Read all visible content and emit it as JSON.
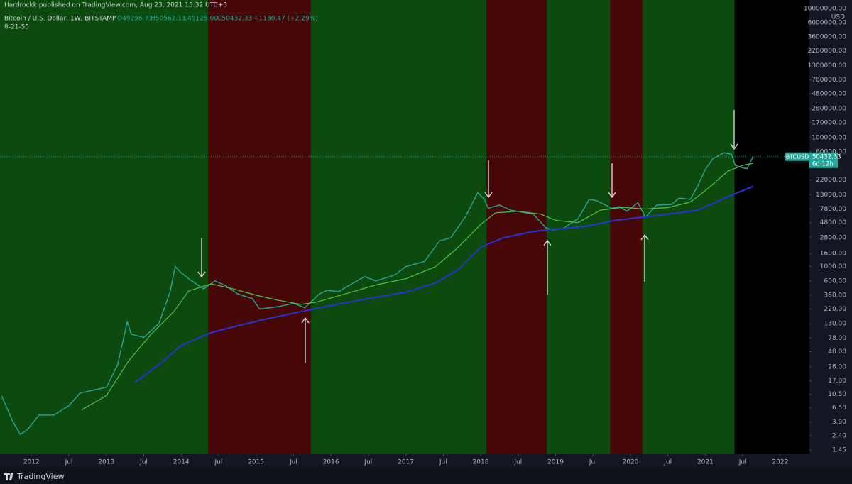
{
  "header": {
    "publisher": "Hardrockk published on TradingView.com, Aug 23, 2021 15:32 UTC+3",
    "symbol": "Bitcoin / U.S. Dollar, 1W, BITSTAMP",
    "open": "O49296.71",
    "high": "H50562.11",
    "low": "L49125.00",
    "close": "C50432.33",
    "change": "+1130.47 (+2.29%)",
    "indicator": "8-21-55"
  },
  "footer": {
    "brand": "TradingView"
  },
  "chart_data": {
    "type": "line",
    "log_scale": true,
    "grid": false,
    "y_unit": "USD",
    "xlim": [
      2011.58,
      2022.39
    ],
    "ylim": [
      1.24,
      13500000
    ],
    "xticks": [
      2012,
      {
        "value": 2012.5,
        "label": "Jul"
      },
      2013,
      {
        "value": 2013.5,
        "label": "Jul"
      },
      2014,
      {
        "value": 2014.5,
        "label": "Jul"
      },
      2015,
      {
        "value": 2015.5,
        "label": "Jul"
      },
      2016,
      {
        "value": 2016.5,
        "label": "Jul"
      },
      2017,
      {
        "value": 2017.5,
        "label": "Jul"
      },
      2018,
      {
        "value": 2018.5,
        "label": "Jul"
      },
      2019,
      {
        "value": 2019.5,
        "label": "Jul"
      },
      2020,
      {
        "value": 2020.5,
        "label": "Jul"
      },
      2021,
      {
        "value": 2021.5,
        "label": "Jul"
      },
      2022
    ],
    "yticks": [
      {
        "value": 10000000,
        "label": "10000000.00"
      },
      {
        "value": 6000000,
        "label": "6000000.00"
      },
      {
        "value": 3600000,
        "label": "3600000.00"
      },
      {
        "value": 2200000,
        "label": "2200000.00"
      },
      {
        "value": 1300000,
        "label": "1300000.00"
      },
      {
        "value": 780000,
        "label": "780000.00"
      },
      {
        "value": 480000,
        "label": "480000.00"
      },
      {
        "value": 280000,
        "label": "280000.00"
      },
      {
        "value": 170000,
        "label": "170000.00"
      },
      {
        "value": 100000,
        "label": "100000.00"
      },
      {
        "value": 60000,
        "label": "60000.00"
      },
      {
        "value": 22000,
        "label": "22000.00"
      },
      {
        "value": 13000,
        "label": "13000.00"
      },
      {
        "value": 7800,
        "label": "7800.00"
      },
      {
        "value": 4800,
        "label": "4800.00"
      },
      {
        "value": 2800,
        "label": "2800.00"
      },
      {
        "value": 1600,
        "label": "1600.00"
      },
      {
        "value": 1000,
        "label": "1000.00"
      },
      {
        "value": 600,
        "label": "600.00"
      },
      {
        "value": 360,
        "label": "360.00"
      },
      {
        "value": 220,
        "label": "220.00"
      },
      {
        "value": 130,
        "label": "130.00"
      },
      {
        "value": 78,
        "label": "78.00"
      },
      {
        "value": 48,
        "label": "48.00"
      },
      {
        "value": 28,
        "label": "28.00"
      },
      {
        "value": 17,
        "label": "17.00"
      },
      {
        "value": 10.5,
        "label": "10.50"
      },
      {
        "value": 6.5,
        "label": "6.50"
      },
      {
        "value": 3.9,
        "label": "3.90"
      },
      {
        "value": 2.4,
        "label": "2.40"
      },
      {
        "value": 1.45,
        "label": "1.45"
      }
    ],
    "bands": [
      {
        "from": 2011.58,
        "to": 2014.36,
        "color": "#0c4a0e"
      },
      {
        "from": 2014.36,
        "to": 2015.73,
        "color": "#470707"
      },
      {
        "from": 2015.73,
        "to": 2018.08,
        "color": "#0c4a0e"
      },
      {
        "from": 2018.08,
        "to": 2018.88,
        "color": "#470707"
      },
      {
        "from": 2018.88,
        "to": 2019.73,
        "color": "#0c4a0e"
      },
      {
        "from": 2019.73,
        "to": 2020.16,
        "color": "#470707"
      },
      {
        "from": 2020.16,
        "to": 2021.39,
        "color": "#0c4a0e"
      },
      {
        "from": 2021.39,
        "to": 2022.39,
        "color": "#000000"
      }
    ],
    "price_tag": {
      "symbol": "BTCUSD",
      "countdown": "6d 12h",
      "color": "#26a69a"
    },
    "series": [
      {
        "color": "#26a69a",
        "width": 1.4,
        "x": [
          2011.6,
          2011.75,
          2011.85,
          2011.95,
          2012.1,
          2012.3,
          2012.5,
          2012.65,
          2012.8,
          2013.0,
          2013.15,
          2013.28,
          2013.33,
          2013.5,
          2013.7,
          2013.85,
          2013.92,
          2014.0,
          2014.1,
          2014.3,
          2014.45,
          2014.6,
          2014.75,
          2014.95,
          2015.05,
          2015.3,
          2015.5,
          2015.65,
          2015.85,
          2015.95,
          2016.1,
          2016.45,
          2016.6,
          2016.85,
          2017.0,
          2017.25,
          2017.45,
          2017.6,
          2017.8,
          2017.96,
          2018.05,
          2018.1,
          2018.25,
          2018.4,
          2018.55,
          2018.7,
          2018.87,
          2018.96,
          2019.1,
          2019.3,
          2019.45,
          2019.55,
          2019.75,
          2019.85,
          2019.95,
          2020.1,
          2020.2,
          2020.35,
          2020.55,
          2020.65,
          2020.8,
          2020.9,
          2021.0,
          2021.1,
          2021.25,
          2021.35,
          2021.4,
          2021.5,
          2021.56,
          2021.6,
          2021.64
        ],
        "values": [
          10,
          4,
          2.5,
          3,
          5,
          5,
          7,
          11,
          12,
          13.5,
          30,
          140,
          90,
          80,
          130,
          400,
          1000,
          800,
          650,
          450,
          600,
          500,
          380,
          320,
          220,
          240,
          270,
          230,
          380,
          430,
          410,
          700,
          600,
          740,
          1000,
          1200,
          2500,
          2800,
          6000,
          14000,
          11000,
          8000,
          9000,
          7500,
          7000,
          6500,
          4000,
          3700,
          3900,
          5500,
          11000,
          10500,
          8000,
          8500,
          7200,
          9800,
          5800,
          9000,
          9200,
          11500,
          11000,
          18000,
          32000,
          47000,
          58000,
          55000,
          37000,
          34000,
          33000,
          42000,
          50432.33
        ]
      },
      {
        "color": "#4cc44c",
        "width": 1.2,
        "x": [
          2012.67,
          2013.0,
          2013.3,
          2013.6,
          2013.9,
          2014.1,
          2014.4,
          2014.7,
          2015.0,
          2015.3,
          2015.6,
          2015.8,
          2016.2,
          2016.6,
          2017.0,
          2017.4,
          2017.7,
          2018.0,
          2018.2,
          2018.5,
          2018.8,
          2019.0,
          2019.3,
          2019.6,
          2019.9,
          2020.2,
          2020.5,
          2020.8,
          2021.0,
          2021.3,
          2021.5,
          2021.64
        ],
        "values": [
          6,
          10,
          35,
          90,
          200,
          420,
          540,
          450,
          360,
          300,
          260,
          280,
          380,
          520,
          650,
          1000,
          2000,
          4500,
          6800,
          7200,
          6500,
          5200,
          4800,
          7500,
          8300,
          7800,
          8200,
          10000,
          15000,
          30000,
          37000,
          40000
        ]
      },
      {
        "color": "#2633d6",
        "width": 2,
        "x": [
          2013.38,
          2013.7,
          2014.0,
          2014.4,
          2014.8,
          2015.2,
          2015.6,
          2016.0,
          2016.5,
          2017.0,
          2017.4,
          2017.7,
          2018.0,
          2018.3,
          2018.7,
          2019.0,
          2019.4,
          2019.8,
          2020.2,
          2020.6,
          2020.9,
          2021.1,
          2021.4,
          2021.64
        ],
        "values": [
          16,
          30,
          60,
          95,
          125,
          160,
          200,
          250,
          320,
          400,
          560,
          900,
          2000,
          2800,
          3500,
          3800,
          4200,
          5200,
          5900,
          6700,
          7500,
          9500,
          13500,
          17500
        ]
      }
    ]
  }
}
